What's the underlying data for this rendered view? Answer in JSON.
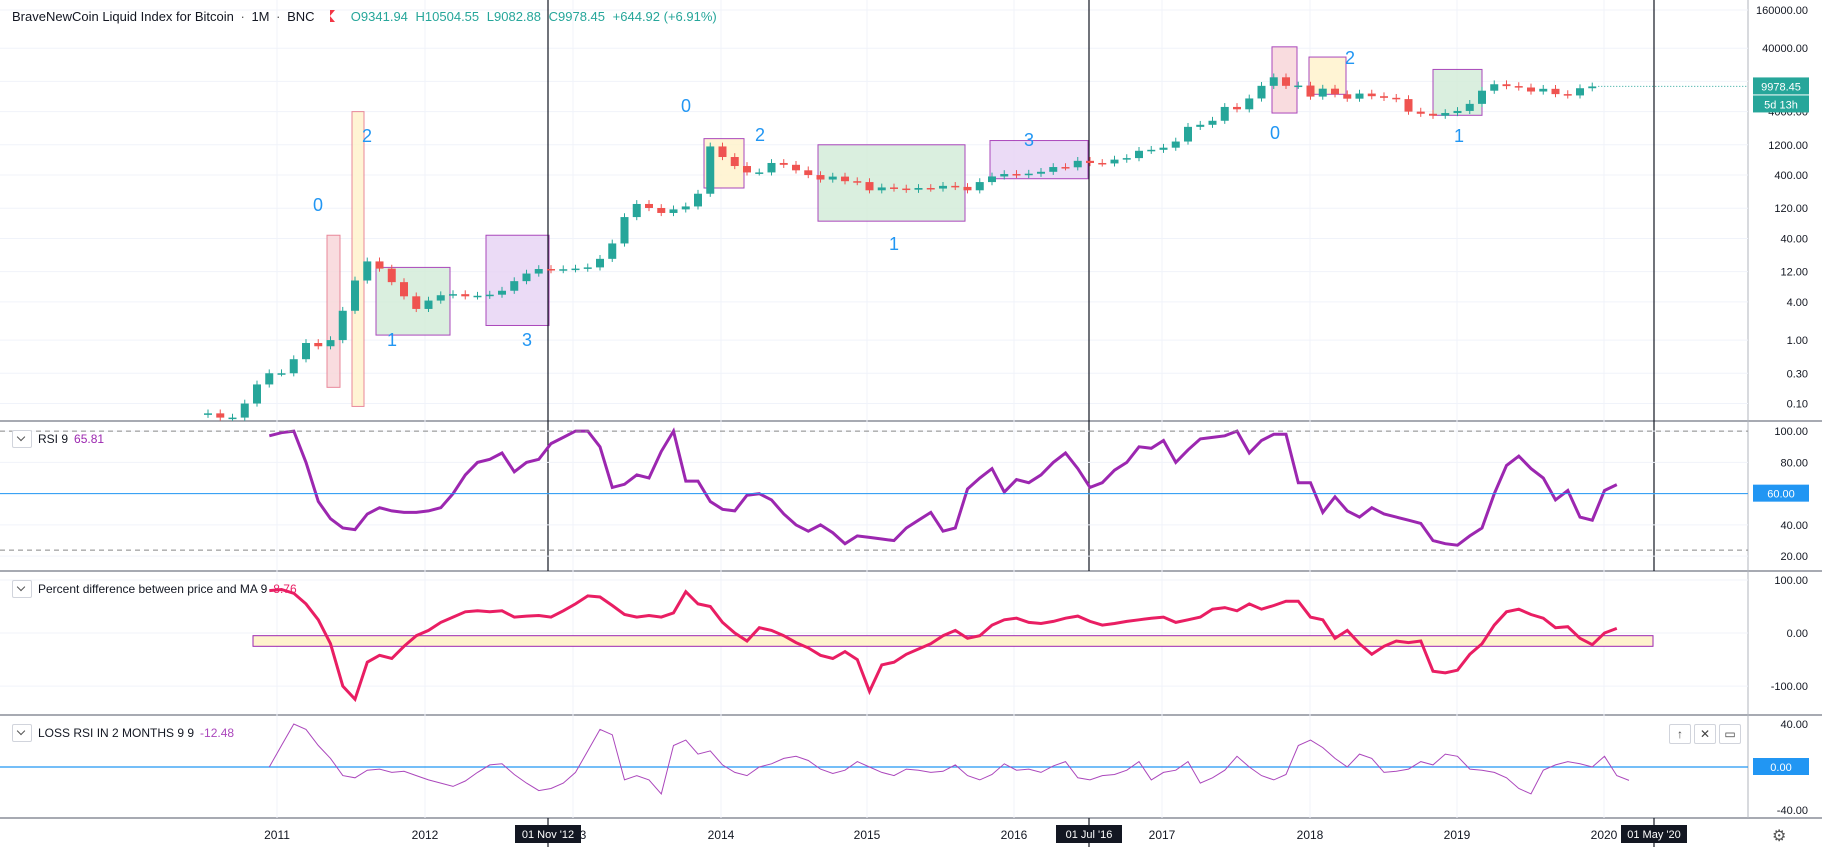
{
  "header": {
    "title": "BraveNewCoin Liquid Index for Bitcoin",
    "interval": "1M",
    "exchange": "BNC",
    "open": "O9341.94",
    "high": "H10504.55",
    "low": "L9082.88",
    "close": "C9978.45",
    "change": "+644.92 (+6.91%)"
  },
  "panes": {
    "rsi": {
      "label": "RSI 9",
      "value": "65.81",
      "marker_label": "60.00"
    },
    "pct": {
      "label": "Percent difference between price and MA 9",
      "value": "8.76"
    },
    "loss": {
      "label": "LOSS RSI IN 2 MONTHS 9 9",
      "value": "-12.48",
      "marker_label": "0.00"
    }
  },
  "price_tag": {
    "value": "9978.45",
    "countdown": "5d 13h"
  },
  "time_markers": [
    "01 Nov '12",
    "01 Jul '16",
    "01 May '20"
  ],
  "colors": {
    "up": "#26a69a",
    "down": "#ef5350",
    "rsi": "#9c27b0",
    "pct": "#e91e63",
    "loss": "#ab47bc",
    "hline": "#2196f3"
  },
  "chart_data": [
    {
      "type": "candlestick",
      "title": "BraveNewCoin Liquid Index for Bitcoin",
      "scale": "log",
      "x_ticks": [
        "2011",
        "2012",
        "2013",
        "2014",
        "2015",
        "2016",
        "2017",
        "2018",
        "2019",
        "2020"
      ],
      "y_ticks": [
        "160000.00",
        "40000.00",
        "12000.00",
        "4000.00",
        "1200.00",
        "400.00",
        "120.00",
        "40.00",
        "12.00",
        "4.00",
        "1.00",
        "0.30",
        "0.10"
      ],
      "close_values": [
        0.07,
        0.06,
        0.06,
        0.1,
        0.2,
        0.3,
        0.3,
        0.5,
        0.9,
        0.8,
        1.0,
        2.9,
        8.7,
        17.4,
        13.4,
        8.2,
        4.9,
        3.1,
        4.2,
        5.1,
        5.3,
        4.9,
        5.0,
        5.2,
        6.0,
        8.5,
        11.2,
        13.2,
        12.7,
        13.1,
        13.4,
        14.0,
        19.1,
        33.4,
        87.0,
        140.0,
        121.0,
        101.0,
        115.0,
        128.0,
        203.0,
        1130.0,
        770.0,
        555.0,
        440.0,
        440.0,
        620.0,
        580.0,
        475.0,
        400.0,
        340.0,
        378.0,
        320.0,
        310.0,
        230.0,
        255.0,
        245.0,
        235.0,
        250.0,
        245.0,
        270.0,
        260.0,
        230.0,
        310.0,
        380.0,
        415.0,
        400.0,
        420.0,
        450.0,
        535.0,
        530.0,
        670.0,
        620.0,
        610.0,
        700.0,
        740.0,
        965.0,
        1000.0,
        1080.0,
        1350.0,
        2300.0,
        2480.0,
        2870.0,
        4740.0,
        4350.0,
        6450.0,
        10200.0,
        13900.0,
        10200.0,
        10300.0,
        6900.0,
        9200.0,
        7500.0,
        6400.0,
        7700.0,
        7000.0,
        6600.0,
        6300.0,
        4000.0,
        3700.0,
        3450.0,
        3800.0,
        4100.0,
        5300.0,
        8550.0,
        10800.0,
        10100.0,
        9600.0,
        8300.0,
        9150.0,
        7550.0,
        7200.0,
        9350.0,
        9978.45
      ],
      "annotations": [
        "0",
        "2",
        "1",
        "3",
        "0",
        "2",
        "1",
        "3",
        "0",
        "2",
        "1"
      ]
    },
    {
      "type": "line",
      "name": "RSI 9",
      "y_ticks": [
        "100.00",
        "80.00",
        "60.00",
        "40.00",
        "20.00"
      ],
      "values": [
        97,
        99,
        100,
        80,
        55,
        44,
        38,
        37,
        47,
        51,
        49,
        48,
        48,
        49,
        51,
        60,
        72,
        80,
        82,
        86,
        74,
        80,
        82,
        92,
        96,
        100,
        100,
        90,
        64,
        66,
        72,
        70,
        87,
        100,
        68,
        68,
        55,
        50,
        49,
        59,
        60,
        56,
        47,
        40,
        36,
        40,
        35,
        28,
        33,
        32,
        31,
        30,
        38,
        43,
        48,
        36,
        38,
        63,
        70,
        76,
        61,
        69,
        67,
        72,
        80,
        86,
        76,
        64,
        67,
        75,
        80,
        90,
        89,
        94,
        80,
        88,
        95,
        96,
        97,
        100,
        86,
        94,
        98,
        98,
        67,
        67,
        48,
        58,
        49,
        45,
        51,
        47,
        45,
        43,
        41,
        30,
        28,
        27,
        33,
        38,
        60,
        78,
        84,
        76,
        70,
        56,
        62,
        45,
        43,
        62,
        65.81
      ],
      "hlines": [
        100,
        60,
        20
      ]
    },
    {
      "type": "line",
      "name": "Percent difference between price and MA 9",
      "y_ticks": [
        "100.00",
        "0.00",
        "-100.00"
      ],
      "values": [
        80,
        82,
        75,
        55,
        25,
        -20,
        -100,
        -125,
        -55,
        -42,
        -48,
        -25,
        -5,
        5,
        20,
        30,
        40,
        42,
        40,
        42,
        30,
        32,
        33,
        30,
        42,
        55,
        70,
        68,
        52,
        35,
        30,
        33,
        30,
        38,
        78,
        55,
        50,
        20,
        0,
        -15,
        10,
        5,
        -5,
        -18,
        -28,
        -42,
        -48,
        -35,
        -50,
        -110,
        -60,
        -55,
        -40,
        -30,
        -20,
        -5,
        5,
        -10,
        -5,
        15,
        25,
        28,
        20,
        18,
        22,
        28,
        32,
        22,
        15,
        18,
        22,
        25,
        28,
        30,
        20,
        25,
        30,
        45,
        48,
        42,
        55,
        45,
        52,
        60,
        60,
        30,
        25,
        -10,
        5,
        -20,
        -40,
        -25,
        -15,
        -18,
        -15,
        -72,
        -75,
        -70,
        -40,
        -20,
        15,
        40,
        45,
        35,
        28,
        10,
        12,
        -10,
        -22,
        0,
        8.76
      ],
      "band": [
        -25,
        -5
      ]
    },
    {
      "type": "line",
      "name": "LOSS RSI IN 2 MONTHS 9 9",
      "y_ticks": [
        "40.00",
        "0.00",
        "-40.00"
      ],
      "values": [
        0,
        20,
        40,
        35,
        20,
        8,
        -8,
        -10,
        -3,
        -2,
        -5,
        -4,
        -8,
        -12,
        -15,
        -18,
        -13,
        -5,
        2,
        3,
        -7,
        -15,
        -22,
        -20,
        -15,
        -5,
        15,
        35,
        30,
        -12,
        -8,
        -12,
        -25,
        20,
        25,
        12,
        15,
        2,
        -5,
        -8,
        0,
        3,
        8,
        10,
        6,
        -2,
        -6,
        -3,
        5,
        0,
        -5,
        -8,
        -2,
        -3,
        -5,
        -4,
        2,
        -8,
        -12,
        -7,
        3,
        -3,
        -2,
        -5,
        1,
        5,
        -10,
        -12,
        -8,
        -7,
        -3,
        5,
        -12,
        -5,
        -3,
        5,
        -15,
        -10,
        -3,
        10,
        0,
        -8,
        -12,
        -7,
        20,
        25,
        18,
        8,
        0,
        12,
        8,
        -5,
        -4,
        -2,
        5,
        2,
        12,
        10,
        -2,
        -3,
        -5,
        -10,
        -20,
        -25,
        -3,
        2,
        5,
        3,
        0,
        10,
        -8,
        -12.48
      ],
      "hlines": [
        0
      ]
    }
  ]
}
